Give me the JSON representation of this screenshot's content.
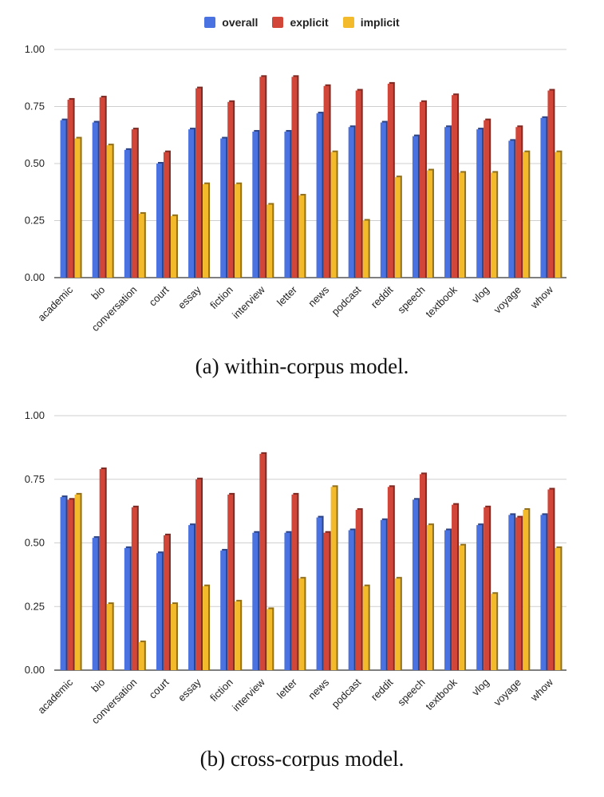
{
  "legend": {
    "items": [
      {
        "label": "overall",
        "color": "#4a72e0"
      },
      {
        "label": "explicit",
        "color": "#d2463a"
      },
      {
        "label": "implicit",
        "color": "#f3bb2b"
      }
    ]
  },
  "chart_data": [
    {
      "type": "bar",
      "caption": "(a) within-corpus model.",
      "categories": [
        "academic",
        "bio",
        "conversation",
        "court",
        "essay",
        "fiction",
        "interview",
        "letter",
        "news",
        "podcast",
        "reddit",
        "speech",
        "textbook",
        "vlog",
        "voyage",
        "whow"
      ],
      "ylim": [
        0,
        1.0
      ],
      "yticks": [
        "0.00",
        "0.25",
        "0.50",
        "0.75",
        "1.00"
      ],
      "grid": true,
      "legend_placement": "top-center",
      "series": [
        {
          "name": "overall",
          "values": [
            0.69,
            0.68,
            0.56,
            0.5,
            0.65,
            0.61,
            0.64,
            0.64,
            0.72,
            0.66,
            0.68,
            0.62,
            0.66,
            0.65,
            0.6,
            0.7
          ]
        },
        {
          "name": "explicit",
          "values": [
            0.78,
            0.79,
            0.65,
            0.55,
            0.83,
            0.77,
            0.88,
            0.88,
            0.84,
            0.82,
            0.85,
            0.77,
            0.8,
            0.69,
            0.66,
            0.82
          ]
        },
        {
          "name": "implicit",
          "values": [
            0.61,
            0.58,
            0.28,
            0.27,
            0.41,
            0.41,
            0.32,
            0.36,
            0.55,
            0.25,
            0.44,
            0.47,
            0.46,
            0.46,
            0.55,
            0.55
          ]
        }
      ]
    },
    {
      "type": "bar",
      "caption": "(b) cross-corpus model.",
      "categories": [
        "academic",
        "bio",
        "conversation",
        "court",
        "essay",
        "fiction",
        "interview",
        "letter",
        "news",
        "podcast",
        "reddit",
        "speech",
        "textbook",
        "vlog",
        "voyage",
        "whow"
      ],
      "ylim": [
        0,
        1.0
      ],
      "yticks": [
        "0.00",
        "0.25",
        "0.50",
        "0.75",
        "1.00"
      ],
      "grid": true,
      "series": [
        {
          "name": "overall",
          "values": [
            0.68,
            0.52,
            0.48,
            0.46,
            0.57,
            0.47,
            0.54,
            0.54,
            0.6,
            0.55,
            0.59,
            0.67,
            0.55,
            0.57,
            0.61,
            0.61
          ]
        },
        {
          "name": "explicit",
          "values": [
            0.67,
            0.79,
            0.64,
            0.53,
            0.75,
            0.69,
            0.85,
            0.69,
            0.54,
            0.63,
            0.72,
            0.77,
            0.65,
            0.64,
            0.6,
            0.71
          ]
        },
        {
          "name": "implicit",
          "values": [
            0.69,
            0.26,
            0.11,
            0.26,
            0.33,
            0.27,
            0.24,
            0.36,
            0.72,
            0.33,
            0.36,
            0.57,
            0.49,
            0.3,
            0.63,
            0.48
          ]
        }
      ]
    }
  ]
}
